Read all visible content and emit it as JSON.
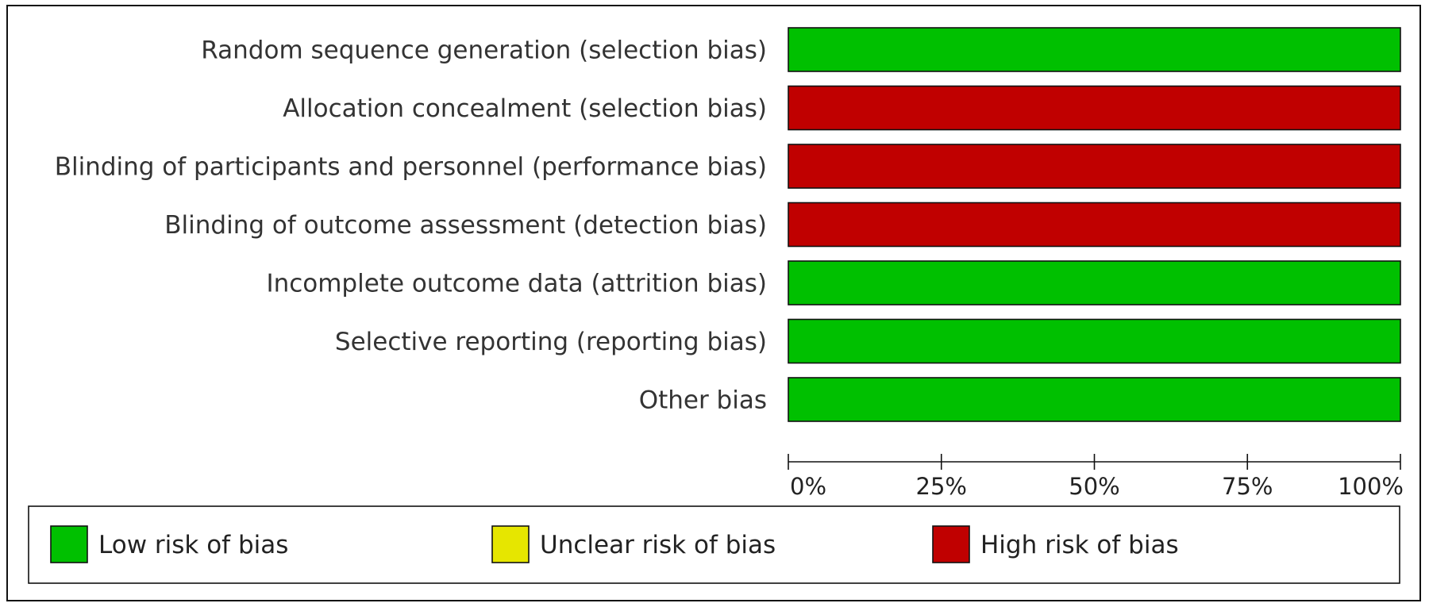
{
  "chart_data": {
    "type": "bar",
    "stacked": true,
    "orientation": "horizontal",
    "categories": [
      "Random sequence generation (selection bias)",
      "Allocation concealment (selection bias)",
      "Blinding of participants and personnel (performance bias)",
      "Blinding of outcome assessment (detection bias)",
      "Incomplete outcome data (attrition bias)",
      "Selective reporting (reporting bias)",
      "Other bias"
    ],
    "series": [
      {
        "name": "Low risk of bias",
        "color": "#00c000",
        "values": [
          100,
          0,
          0,
          0,
          100,
          100,
          100
        ]
      },
      {
        "name": "Unclear risk of bias",
        "color": "#e6e600",
        "values": [
          0,
          0,
          0,
          0,
          0,
          0,
          0
        ]
      },
      {
        "name": "High risk of bias",
        "color": "#c00000",
        "values": [
          0,
          100,
          100,
          100,
          0,
          0,
          0
        ]
      }
    ],
    "xlim": [
      0,
      100
    ],
    "xticks": [
      0,
      25,
      50,
      75,
      100
    ],
    "xtick_labels": [
      "0%",
      "25%",
      "50%",
      "75%",
      "100%"
    ],
    "title": "",
    "xlabel": "",
    "ylabel": "",
    "grid": false,
    "legend_position": "bottom"
  }
}
